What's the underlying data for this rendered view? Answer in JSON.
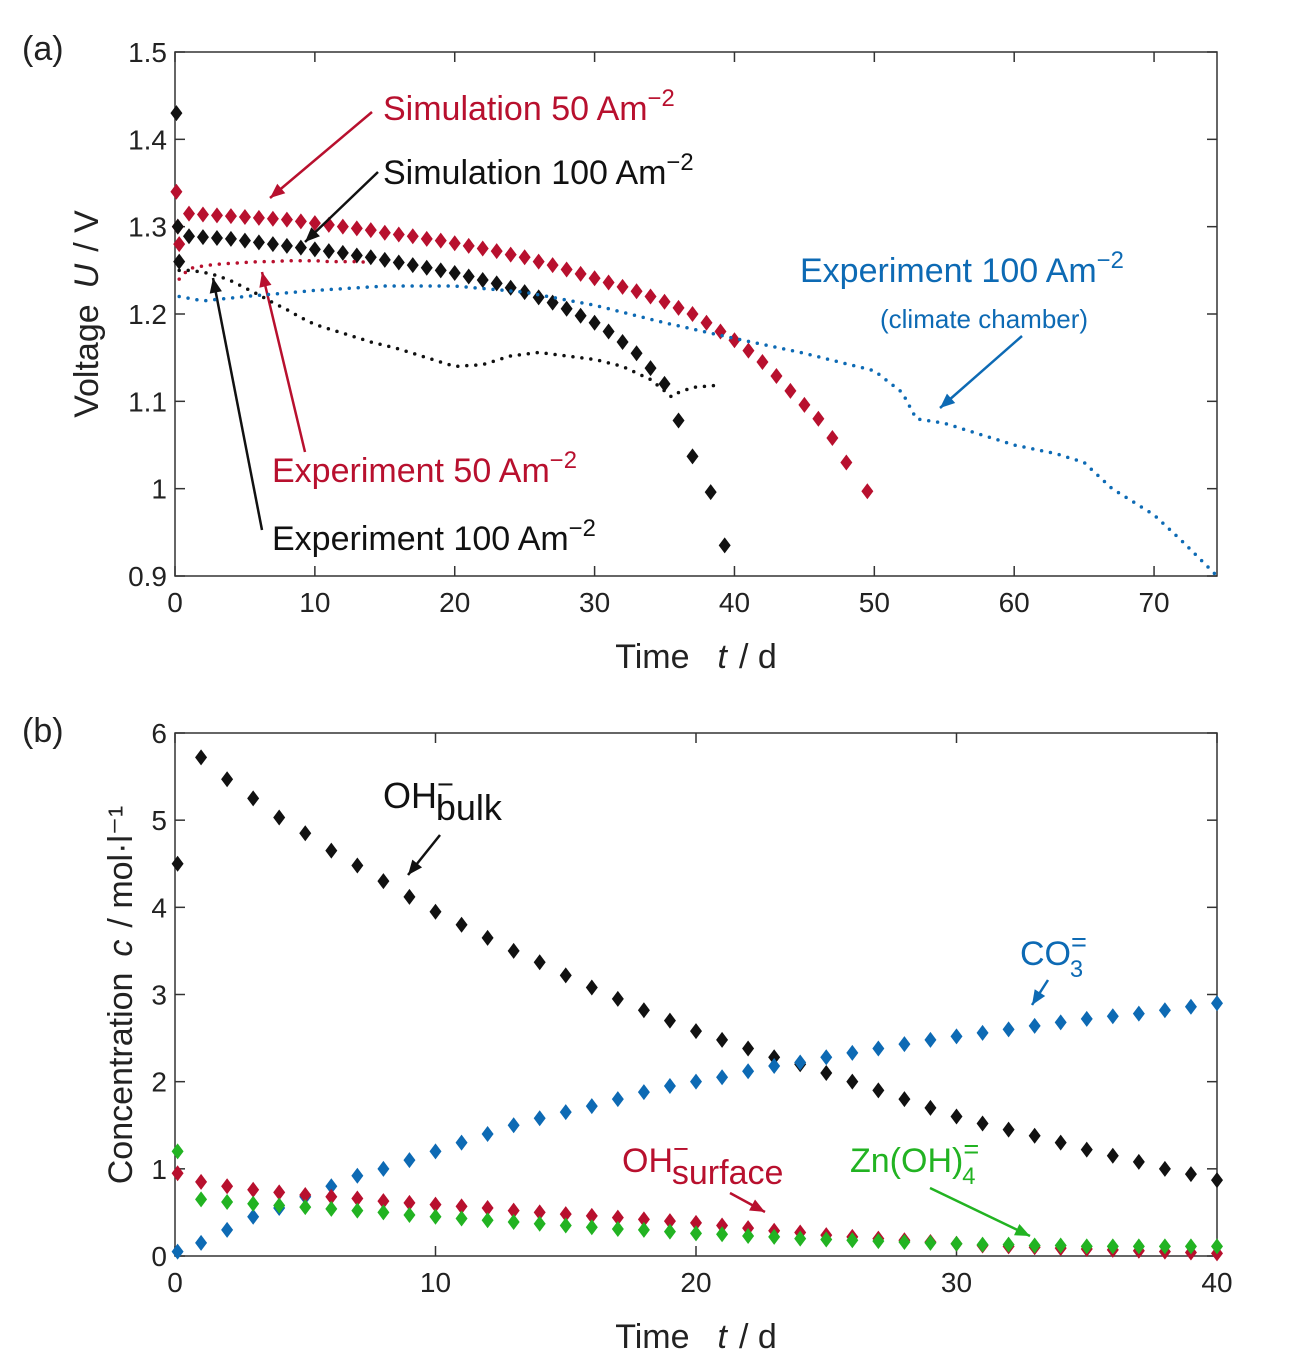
{
  "chart_data": [
    {
      "type": "scatter",
      "panel": "(a)",
      "xlabel": {
        "text": "Time",
        "var": "t",
        "unit": "/  d"
      },
      "ylabel": {
        "text": "Voltage",
        "var": "U",
        "unit": "/  V"
      },
      "xlim": [
        0,
        74.5
      ],
      "ylim": [
        0.9,
        1.5
      ],
      "xticks": [
        0,
        10,
        20,
        30,
        40,
        50,
        60,
        70
      ],
      "yticks": [
        0.9,
        1,
        1.1,
        1.2,
        1.3,
        1.4,
        1.5
      ],
      "series": [
        {
          "name": "Simulation 50 Am",
          "name_sup": "−2",
          "color": "#b8102e",
          "marker": "diamond",
          "x": [
            0.1,
            0.2,
            0.3,
            1,
            2,
            3,
            4,
            5,
            6,
            7,
            8,
            9,
            10,
            11,
            12,
            13,
            14,
            15,
            16,
            17,
            18,
            19,
            20,
            21,
            22,
            23,
            24,
            25,
            26,
            27,
            28,
            29,
            30,
            31,
            32,
            33,
            34,
            35,
            36,
            37,
            38,
            39,
            40,
            41,
            42,
            43,
            44,
            45,
            46,
            47,
            48,
            49.5
          ],
          "values": [
            1.34,
            1.3,
            1.28,
            1.315,
            1.314,
            1.313,
            1.312,
            1.311,
            1.31,
            1.309,
            1.308,
            1.306,
            1.304,
            1.302,
            1.3,
            1.298,
            1.296,
            1.293,
            1.291,
            1.289,
            1.286,
            1.284,
            1.281,
            1.278,
            1.275,
            1.272,
            1.268,
            1.265,
            1.26,
            1.256,
            1.251,
            1.246,
            1.241,
            1.236,
            1.231,
            1.226,
            1.22,
            1.214,
            1.207,
            1.2,
            1.19,
            1.18,
            1.17,
            1.158,
            1.145,
            1.129,
            1.112,
            1.096,
            1.08,
            1.058,
            1.03,
            0.997
          ]
        },
        {
          "name": "Simulation 100 Am",
          "name_sup": "−2",
          "color": "#111111",
          "marker": "diamond",
          "x": [
            0.1,
            0.2,
            0.3,
            1,
            2,
            3,
            4,
            5,
            6,
            7,
            8,
            9,
            10,
            11,
            12,
            13,
            14,
            15,
            16,
            17,
            18,
            19,
            20,
            21,
            22,
            23,
            24,
            25,
            26,
            27,
            28,
            29,
            30,
            31,
            32,
            33,
            34,
            35,
            36,
            37,
            38.3,
            39.3
          ],
          "values": [
            1.43,
            1.3,
            1.26,
            1.289,
            1.288,
            1.287,
            1.286,
            1.284,
            1.282,
            1.28,
            1.278,
            1.276,
            1.274,
            1.272,
            1.27,
            1.267,
            1.265,
            1.262,
            1.259,
            1.256,
            1.253,
            1.25,
            1.247,
            1.243,
            1.239,
            1.235,
            1.23,
            1.225,
            1.219,
            1.213,
            1.206,
            1.198,
            1.19,
            1.18,
            1.168,
            1.155,
            1.138,
            1.12,
            1.078,
            1.037,
            0.996,
            0.935
          ]
        },
        {
          "name": "Experiment 50 Am",
          "name_sup": "−2",
          "color": "#b8102e",
          "marker": "dot",
          "x": [
            0.3,
            1,
            2,
            3,
            4,
            5,
            6,
            7,
            8,
            9,
            10,
            11,
            12,
            13,
            14
          ],
          "values": [
            1.24,
            1.252,
            1.255,
            1.257,
            1.258,
            1.259,
            1.26,
            1.26,
            1.261,
            1.261,
            1.261,
            1.26,
            1.26,
            1.26,
            1.259
          ]
        },
        {
          "name": "Experiment 100 Am",
          "name_sup": "−2",
          "color": "#111111",
          "marker": "dot",
          "x": [
            0.3,
            1,
            2,
            3,
            4,
            5,
            6,
            7,
            8,
            9,
            10,
            12,
            14,
            16,
            18,
            20,
            22,
            24,
            26,
            28,
            30,
            32,
            34,
            35,
            35.5,
            36,
            37,
            38.5
          ],
          "values": [
            1.25,
            1.25,
            1.248,
            1.244,
            1.238,
            1.23,
            1.222,
            1.213,
            1.205,
            1.196,
            1.188,
            1.178,
            1.168,
            1.16,
            1.15,
            1.14,
            1.142,
            1.152,
            1.156,
            1.152,
            1.148,
            1.14,
            1.125,
            1.112,
            1.105,
            1.11,
            1.116,
            1.118
          ]
        },
        {
          "name": "Experiment 100 Am",
          "name_sup": "−2",
          "note": "(climate chamber)",
          "color": "#0d6ab4",
          "marker": "dot",
          "x": [
            0.3,
            2,
            5,
            10,
            15,
            20,
            25,
            30,
            35,
            40,
            45,
            50,
            52,
            53,
            55,
            57,
            60,
            63,
            65,
            67,
            70,
            72,
            74.5
          ],
          "values": [
            1.22,
            1.215,
            1.22,
            1.227,
            1.232,
            1.232,
            1.225,
            1.21,
            1.19,
            1.172,
            1.155,
            1.135,
            1.11,
            1.08,
            1.075,
            1.065,
            1.05,
            1.04,
            1.03,
            1.0,
            0.97,
            0.94,
            0.9
          ]
        }
      ]
    },
    {
      "type": "scatter",
      "panel": "(b)",
      "xlabel": {
        "text": "Time",
        "var": "t",
        "unit": "/  d"
      },
      "ylabel": {
        "text": "Concentration",
        "var": "c",
        "unit": "/  mol·l⁻¹"
      },
      "xlim": [
        0,
        40
      ],
      "ylim": [
        0,
        6
      ],
      "xticks": [
        0,
        10,
        20,
        30,
        40
      ],
      "yticks": [
        0,
        1,
        2,
        3,
        4,
        5,
        6
      ],
      "x": [
        0.1,
        1,
        2,
        3,
        4,
        5,
        6,
        7,
        8,
        9,
        10,
        11,
        12,
        13,
        14,
        15,
        16,
        17,
        18,
        19,
        20,
        21,
        22,
        23,
        24,
        25,
        26,
        27,
        28,
        29,
        30,
        31,
        32,
        33,
        34,
        35,
        36,
        37,
        38,
        39,
        40
      ],
      "series": [
        {
          "name": "OH",
          "name_sup": "−",
          "name_sub": "bulk",
          "color": "#111111",
          "marker": "diamond",
          "values": [
            4.5,
            5.72,
            5.47,
            5.25,
            5.03,
            4.85,
            4.65,
            4.48,
            4.3,
            4.12,
            3.95,
            3.8,
            3.65,
            3.5,
            3.37,
            3.22,
            3.08,
            2.95,
            2.82,
            2.7,
            2.58,
            2.48,
            2.38,
            2.28,
            2.2,
            2.1,
            2.0,
            1.9,
            1.8,
            1.7,
            1.6,
            1.52,
            1.45,
            1.38,
            1.3,
            1.22,
            1.15,
            1.08,
            1.0,
            0.94,
            0.87
          ]
        },
        {
          "name": "CO",
          "name_sup": "=",
          "name_sub": "3",
          "color": "#0d6ab4",
          "marker": "diamond",
          "values": [
            0.05,
            0.15,
            0.3,
            0.45,
            0.55,
            0.68,
            0.8,
            0.92,
            1.0,
            1.1,
            1.2,
            1.3,
            1.4,
            1.5,
            1.58,
            1.65,
            1.72,
            1.8,
            1.88,
            1.95,
            2.0,
            2.05,
            2.12,
            2.18,
            2.22,
            2.28,
            2.33,
            2.38,
            2.43,
            2.48,
            2.52,
            2.56,
            2.6,
            2.64,
            2.68,
            2.72,
            2.75,
            2.78,
            2.82,
            2.86,
            2.9
          ]
        },
        {
          "name": "OH",
          "name_sup": "−",
          "name_sub": "surface",
          "color": "#b8102e",
          "marker": "diamond",
          "values": [
            0.95,
            0.85,
            0.8,
            0.76,
            0.73,
            0.7,
            0.68,
            0.66,
            0.63,
            0.61,
            0.59,
            0.57,
            0.55,
            0.52,
            0.5,
            0.48,
            0.46,
            0.44,
            0.42,
            0.4,
            0.38,
            0.35,
            0.32,
            0.29,
            0.27,
            0.24,
            0.22,
            0.2,
            0.18,
            0.16,
            0.14,
            0.12,
            0.11,
            0.1,
            0.09,
            0.08,
            0.07,
            0.06,
            0.05,
            0.04,
            0.03
          ]
        },
        {
          "name": "Zn(OH)",
          "name_sup": "=",
          "name_sub": "4",
          "color": "#22b322",
          "marker": "diamond",
          "values": [
            1.2,
            0.65,
            0.62,
            0.6,
            0.58,
            0.56,
            0.54,
            0.52,
            0.5,
            0.47,
            0.45,
            0.43,
            0.41,
            0.39,
            0.37,
            0.35,
            0.33,
            0.31,
            0.3,
            0.28,
            0.26,
            0.25,
            0.23,
            0.22,
            0.2,
            0.19,
            0.18,
            0.17,
            0.16,
            0.15,
            0.14,
            0.13,
            0.13,
            0.12,
            0.12,
            0.11,
            0.11,
            0.11,
            0.11,
            0.11,
            0.11
          ]
        }
      ]
    }
  ]
}
